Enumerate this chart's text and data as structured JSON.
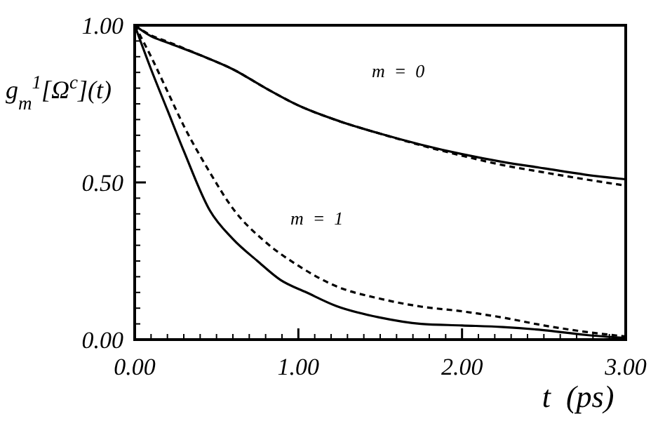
{
  "chart_data": {
    "type": "line",
    "xlabel": "t  (ps)",
    "ylabel": "g$_{m}$$^{1}$[Ω$^{c}$](t)",
    "xlim": [
      0,
      3
    ],
    "ylim": [
      0,
      1
    ],
    "xticks": [
      {
        "value": 0,
        "label": "0.00"
      },
      {
        "value": 1,
        "label": "1.00"
      },
      {
        "value": 2,
        "label": "2.00"
      },
      {
        "value": 3,
        "label": "3.00"
      }
    ],
    "yticks": [
      {
        "value": 0,
        "label": "0.00"
      },
      {
        "value": 0.5,
        "label": "0.50"
      },
      {
        "value": 1,
        "label": "1.00"
      }
    ],
    "grid": false,
    "annotations": [
      "m  =  0",
      "m  =  1"
    ],
    "series": [
      {
        "color": "#000000",
        "line_style": "solid",
        "x": [
          0,
          0.1,
          0.2,
          0.4,
          0.6,
          0.8,
          1,
          1.25,
          1.5,
          1.75,
          2,
          2.25,
          2.5,
          2.75,
          3
        ],
        "values": [
          1,
          0.965,
          0.945,
          0.905,
          0.86,
          0.8,
          0.745,
          0.695,
          0.655,
          0.62,
          0.59,
          0.565,
          0.545,
          0.525,
          0.51
        ]
      },
      {
        "color": "#000000",
        "line_style": "dashed",
        "x": [
          0,
          0.1,
          0.2,
          0.4,
          0.6,
          0.8,
          1,
          1.25,
          1.5,
          1.75,
          2,
          2.25,
          2.5,
          2.75,
          3
        ],
        "values": [
          1,
          0.968,
          0.948,
          0.905,
          0.86,
          0.8,
          0.745,
          0.695,
          0.655,
          0.618,
          0.585,
          0.555,
          0.532,
          0.51,
          0.49
        ]
      },
      {
        "color": "#000000",
        "line_style": "solid",
        "x": [
          0,
          0.1,
          0.2,
          0.3,
          0.46,
          0.6,
          0.75,
          0.89,
          1.05,
          1.23,
          1.5,
          1.75,
          2,
          2.25,
          2.5,
          2.75,
          3
        ],
        "values": [
          1,
          0.86,
          0.73,
          0.6,
          0.41,
          0.32,
          0.25,
          0.19,
          0.15,
          0.107,
          0.07,
          0.05,
          0.045,
          0.04,
          0.03,
          0.015,
          0.005
        ]
      },
      {
        "color": "#000000",
        "line_style": "dashed",
        "x": [
          0,
          0.1,
          0.2,
          0.3,
          0.45,
          0.61,
          0.8,
          1,
          1.23,
          1.5,
          1.75,
          2,
          2.25,
          2.5,
          2.75,
          3
        ],
        "values": [
          1,
          0.9,
          0.79,
          0.68,
          0.54,
          0.41,
          0.31,
          0.235,
          0.17,
          0.13,
          0.105,
          0.09,
          0.07,
          0.045,
          0.025,
          0.01
        ]
      }
    ]
  }
}
